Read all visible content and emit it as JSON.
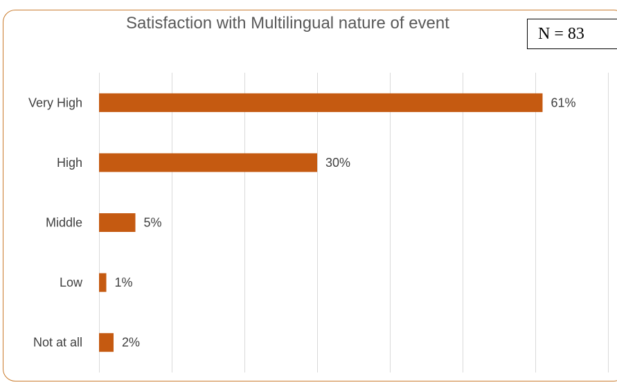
{
  "annotation": {
    "sample_size": "N = 83"
  },
  "chart_data": {
    "type": "bar",
    "orientation": "horizontal",
    "title": "Satisfaction with Multilingual nature of event",
    "categories": [
      "Very High",
      "High",
      "Middle",
      "Low",
      "Not at all"
    ],
    "values": [
      61,
      30,
      5,
      1,
      2
    ],
    "value_labels": [
      "61%",
      "30%",
      "5%",
      "1%",
      "2%"
    ],
    "xlim": [
      0,
      70
    ],
    "grid": true,
    "bar_color": "#c55a11",
    "frame_color": "#c97a2b"
  }
}
